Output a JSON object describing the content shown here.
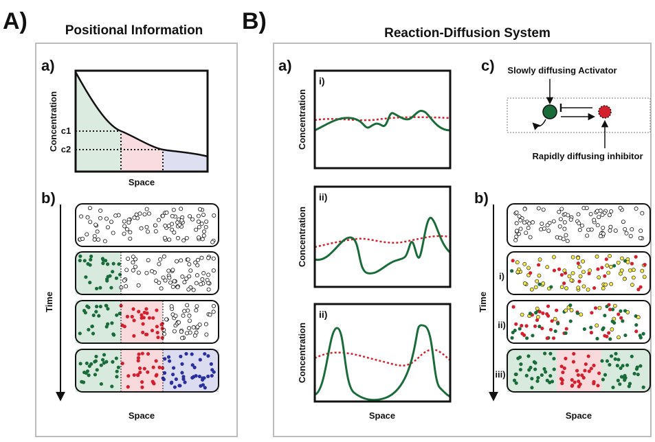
{
  "panel_a": {
    "letter": "A)",
    "title": "Positional Information",
    "sub_a": {
      "label": "a)",
      "y_label": "Concentration",
      "x_label": "Space",
      "thresholds": [
        "c1",
        "c2"
      ]
    },
    "sub_b": {
      "label": "b)",
      "axis_label": "Time",
      "x_label": "Space"
    }
  },
  "panel_b": {
    "letter": "B)",
    "title": "Reaction-Diffusion System",
    "sub_a": {
      "label": "a)",
      "plots": [
        {
          "label": "i)",
          "y_label": "Concentration"
        },
        {
          "label": "ii)",
          "y_label": "Concentration"
        },
        {
          "label": "ii)",
          "y_label": "Concentration"
        }
      ],
      "x_label": "Space"
    },
    "sub_c": {
      "label": "c)",
      "activator": "Slowly diffusing Activator",
      "inhibitor": "Rapidly diffusing inhibitor"
    },
    "sub_b": {
      "label": "b)",
      "stages": [
        "i)",
        "ii)",
        "iii)"
      ],
      "axis_label": "Time",
      "x_label": "Space"
    }
  }
}
